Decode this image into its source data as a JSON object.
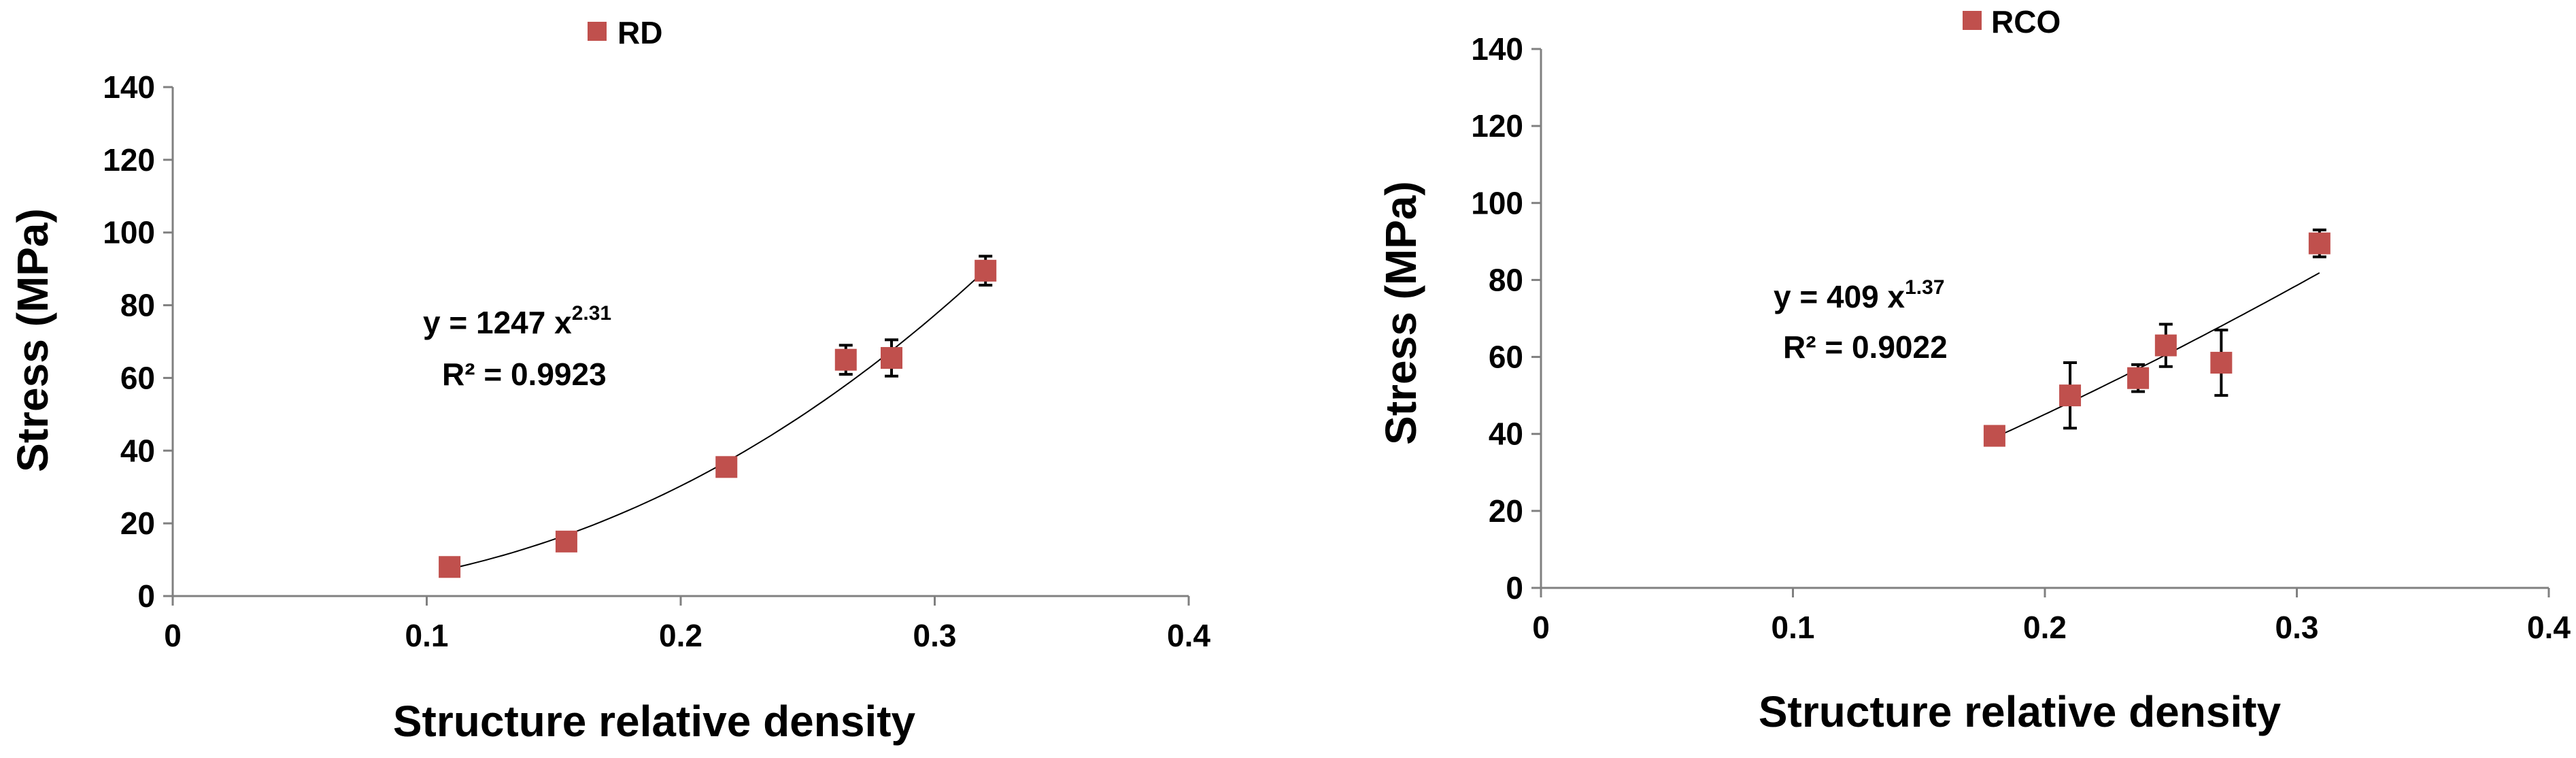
{
  "chart_data": [
    {
      "type": "scatter",
      "xlabel": "Structure relative density",
      "ylabel": "Stress (MPa)",
      "xlim": [
        0,
        0.4
      ],
      "ylim": [
        0,
        140
      ],
      "x_ticks": [
        "0",
        "0.1",
        "0.2",
        "0.3",
        "0.4"
      ],
      "y_ticks": [
        "0",
        "20",
        "40",
        "60",
        "80",
        "100",
        "120",
        "140"
      ],
      "legend_position": "top-center",
      "series": [
        {
          "name": "RD",
          "color": "#c0504d",
          "marker": "square",
          "x": [
            0.109,
            0.155,
            0.218,
            0.265,
            0.283,
            0.32
          ],
          "y": [
            8,
            15,
            35.5,
            65,
            65.5,
            89.5
          ],
          "error": [
            1,
            1,
            2,
            4,
            5,
            4
          ]
        }
      ],
      "trendline": {
        "type": "power",
        "a": 1247,
        "b": 2.31,
        "x_range": [
          0.109,
          0.32
        ],
        "equation_prefix": "y = 1247  x",
        "exponent": "2.31",
        "r2": "R² = 0.9923"
      }
    },
    {
      "type": "scatter",
      "xlabel": "Structure relative density",
      "ylabel": "Stress (MPa)",
      "xlim": [
        0,
        0.4
      ],
      "ylim": [
        0,
        140
      ],
      "x_ticks": [
        "0",
        "0.1",
        "0.2",
        "0.3",
        "0.4"
      ],
      "y_ticks": [
        "0",
        "20",
        "40",
        "60",
        "80",
        "100",
        "120",
        "140"
      ],
      "legend_position": "top-center",
      "series": [
        {
          "name": "RCO",
          "color": "#c0504d",
          "marker": "square",
          "x": [
            0.18,
            0.21,
            0.237,
            0.248,
            0.27,
            0.309
          ],
          "y": [
            39.5,
            50,
            54.5,
            63,
            58.5,
            89.5
          ],
          "error": [
            1,
            8.5,
            3.5,
            5.5,
            8.5,
            3.5
          ]
        }
      ],
      "trendline": {
        "type": "power",
        "a": 409,
        "b": 1.37,
        "x_range": [
          0.18,
          0.309
        ],
        "equation_prefix": "y = 409  x",
        "exponent": "1.37",
        "r2": "R² = 0.9022"
      }
    }
  ]
}
